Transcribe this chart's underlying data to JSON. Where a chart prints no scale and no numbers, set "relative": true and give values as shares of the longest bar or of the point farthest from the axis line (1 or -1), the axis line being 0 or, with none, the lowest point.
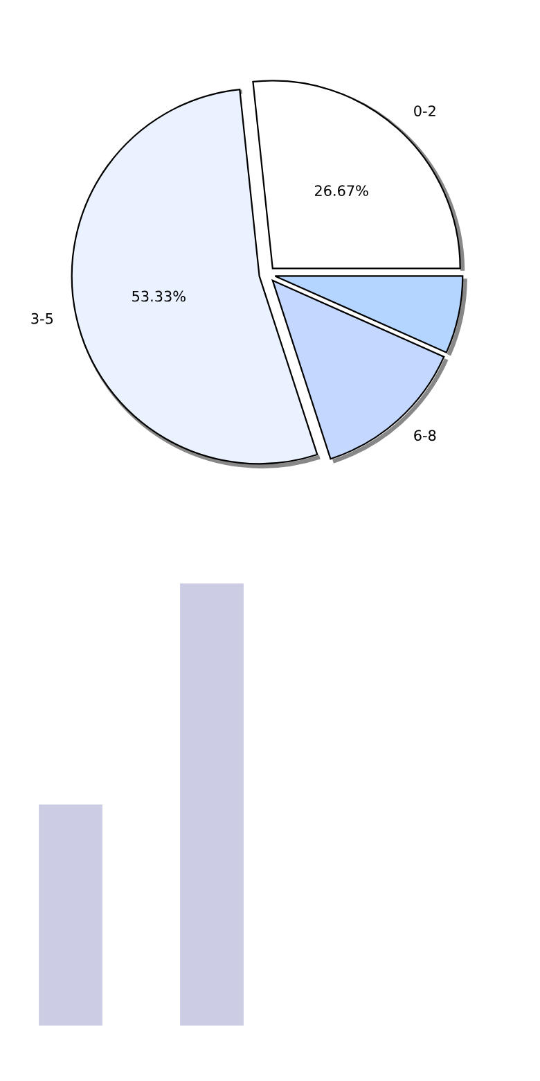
{
  "chart_data": [
    {
      "type": "pie",
      "categories": [
        "0-2",
        "3-5",
        "6-8",
        null
      ],
      "values": [
        26.67,
        53.33,
        13.33,
        6.67
      ],
      "colors": [
        "#ffffff",
        "#eaf1ff",
        "#c4d7ff",
        "#b3d5ff"
      ],
      "value_labels": [
        "26.67%",
        "53.33%",
        null,
        null
      ]
    },
    {
      "type": "bar",
      "relative": true,
      "categories": [
        null,
        null
      ],
      "values": [
        0.5,
        1
      ],
      "color": "#cccde4"
    }
  ]
}
